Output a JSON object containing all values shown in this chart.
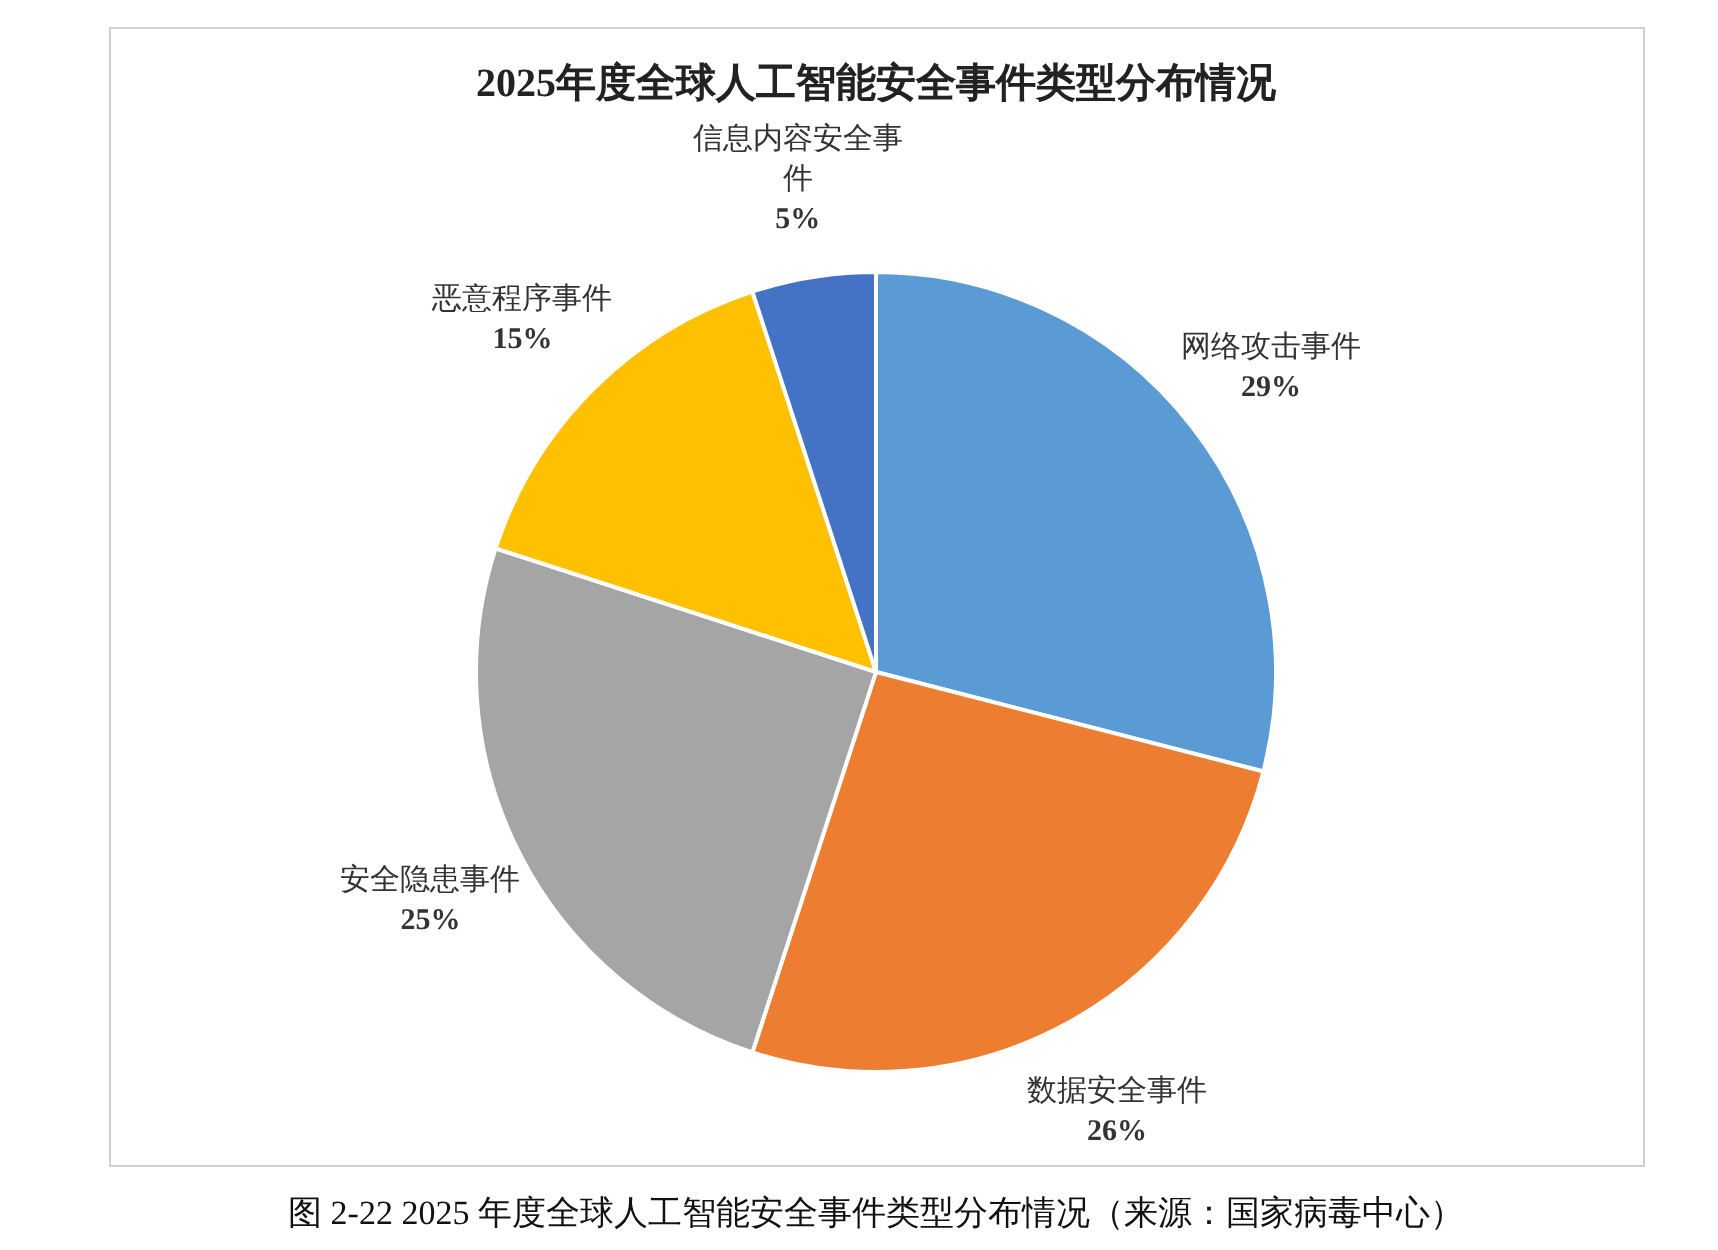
{
  "chart_data": {
    "type": "pie",
    "title": "2025年度全球人工智能安全事件类型分布情况",
    "categories": [
      "网络攻击事件",
      "数据安全事件",
      "安全隐患事件",
      "恶意程序事件",
      "信息内容安全事件"
    ],
    "values": [
      29,
      26,
      25,
      15,
      5
    ],
    "value_labels": [
      "29%",
      "26%",
      "25%",
      "15%",
      "5%"
    ],
    "colors": [
      "#5b9bd5",
      "#ed7d31",
      "#a5a5a5",
      "#ffc000",
      "#4472c4"
    ],
    "legend": false,
    "annotations": [
      "图 2-22 2025 年度全球人工智能安全事件类型分布情况（来源：国家病毒中心）"
    ]
  }
}
